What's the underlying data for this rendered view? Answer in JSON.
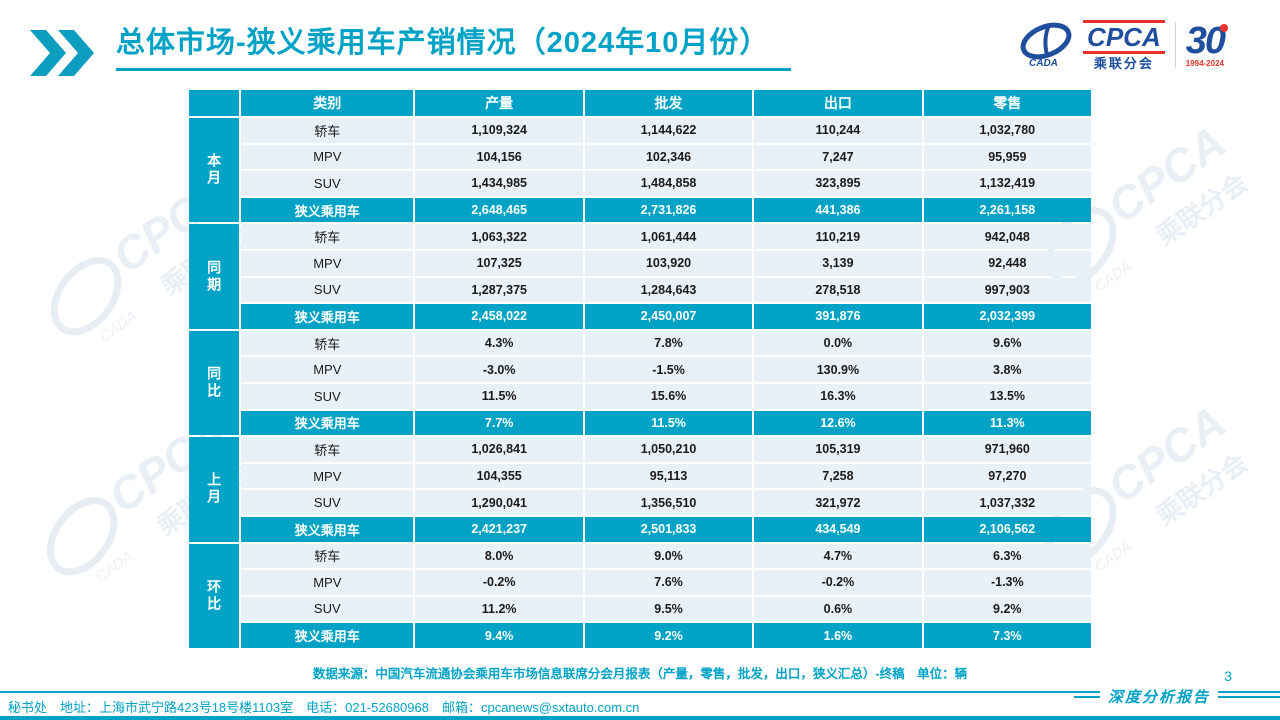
{
  "slide": {
    "title": "总体市场-狭义乘用车产销情况（2024年10月份）",
    "source_note": "数据来源：中国汽车流通协会乘用车市场信息联席分会月报表（产量，零售，批发，出口，狭义汇总）-终稿　单位：辆",
    "footer_contact": "秘书处　地址：上海市武宁路423号18号楼1103室　电话：021-52680968　邮箱：cpcanews@sxtauto.com.cn",
    "report_label": "深度分析报告",
    "page_number": "3"
  },
  "logo": {
    "name": "CPCA",
    "subtitle": "乘联分会",
    "cada": "CADA",
    "anniversary_number": "30",
    "anniversary_years": "1994-2024"
  },
  "watermark": {
    "brand": "CPCA",
    "sub": "乘联分会",
    "cada": "CADA"
  },
  "colors": {
    "accent": "#00A3C6",
    "row_bg": "#E9F1F8",
    "logo_blue": "#1F4E9E",
    "logo_red": "#E53328"
  },
  "table": {
    "headers": [
      "类别",
      "产量",
      "批发",
      "出口",
      "零售"
    ],
    "groups": [
      {
        "label": "本月",
        "rows": [
          {
            "category": "轿车",
            "values": [
              "1,109,324",
              "1,144,622",
              "110,244",
              "1,032,780"
            ],
            "highlight": false
          },
          {
            "category": "MPV",
            "values": [
              "104,156",
              "102,346",
              "7,247",
              "95,959"
            ],
            "highlight": false
          },
          {
            "category": "SUV",
            "values": [
              "1,434,985",
              "1,484,858",
              "323,895",
              "1,132,419"
            ],
            "highlight": false
          },
          {
            "category": "狭义乘用车",
            "values": [
              "2,648,465",
              "2,731,826",
              "441,386",
              "2,261,158"
            ],
            "highlight": true
          }
        ]
      },
      {
        "label": "同期",
        "rows": [
          {
            "category": "轿车",
            "values": [
              "1,063,322",
              "1,061,444",
              "110,219",
              "942,048"
            ],
            "highlight": false
          },
          {
            "category": "MPV",
            "values": [
              "107,325",
              "103,920",
              "3,139",
              "92,448"
            ],
            "highlight": false
          },
          {
            "category": "SUV",
            "values": [
              "1,287,375",
              "1,284,643",
              "278,518",
              "997,903"
            ],
            "highlight": false
          },
          {
            "category": "狭义乘用车",
            "values": [
              "2,458,022",
              "2,450,007",
              "391,876",
              "2,032,399"
            ],
            "highlight": true
          }
        ]
      },
      {
        "label": "同比",
        "rows": [
          {
            "category": "轿车",
            "values": [
              "4.3%",
              "7.8%",
              "0.0%",
              "9.6%"
            ],
            "highlight": false
          },
          {
            "category": "MPV",
            "values": [
              "-3.0%",
              "-1.5%",
              "130.9%",
              "3.8%"
            ],
            "highlight": false
          },
          {
            "category": "SUV",
            "values": [
              "11.5%",
              "15.6%",
              "16.3%",
              "13.5%"
            ],
            "highlight": false
          },
          {
            "category": "狭义乘用车",
            "values": [
              "7.7%",
              "11.5%",
              "12.6%",
              "11.3%"
            ],
            "highlight": true
          }
        ]
      },
      {
        "label": "上月",
        "rows": [
          {
            "category": "轿车",
            "values": [
              "1,026,841",
              "1,050,210",
              "105,319",
              "971,960"
            ],
            "highlight": false
          },
          {
            "category": "MPV",
            "values": [
              "104,355",
              "95,113",
              "7,258",
              "97,270"
            ],
            "highlight": false
          },
          {
            "category": "SUV",
            "values": [
              "1,290,041",
              "1,356,510",
              "321,972",
              "1,037,332"
            ],
            "highlight": false
          },
          {
            "category": "狭义乘用车",
            "values": [
              "2,421,237",
              "2,501,833",
              "434,549",
              "2,106,562"
            ],
            "highlight": true
          }
        ]
      },
      {
        "label": "环比",
        "rows": [
          {
            "category": "轿车",
            "values": [
              "8.0%",
              "9.0%",
              "4.7%",
              "6.3%"
            ],
            "highlight": false
          },
          {
            "category": "MPV",
            "values": [
              "-0.2%",
              "7.6%",
              "-0.2%",
              "-1.3%"
            ],
            "highlight": false
          },
          {
            "category": "SUV",
            "values": [
              "11.2%",
              "9.5%",
              "0.6%",
              "9.2%"
            ],
            "highlight": false
          },
          {
            "category": "狭义乘用车",
            "values": [
              "9.4%",
              "9.2%",
              "1.6%",
              "7.3%"
            ],
            "highlight": true
          }
        ]
      }
    ]
  }
}
